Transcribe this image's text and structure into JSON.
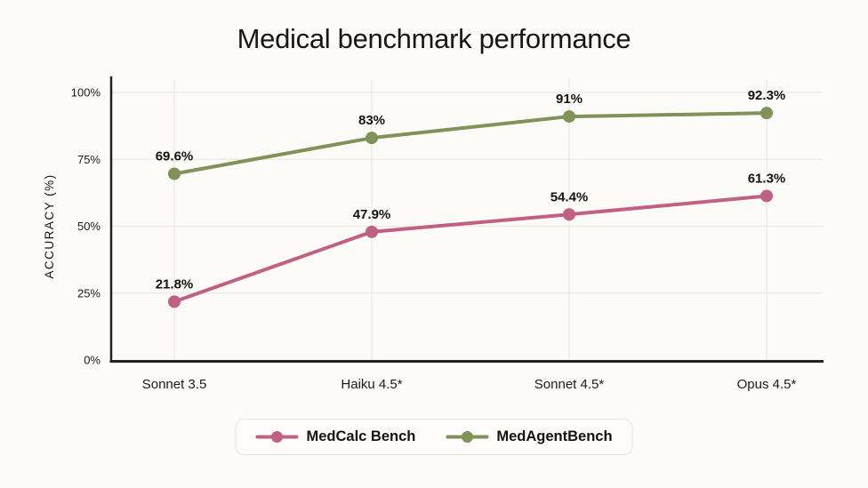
{
  "theme": {
    "background": "#FCFBF8",
    "text_color": "#171613",
    "grid_line": "#ECE9E3",
    "axis_line": "#23211E",
    "legend_border": "#E7E4DC",
    "legend_background": "#FDFCFA"
  },
  "chart_data": {
    "type": "line",
    "title": "Medical benchmark performance",
    "categories": [
      "Sonnet 3.5",
      "Haiku 4.5*",
      "Sonnet 4.5*",
      "Opus 4.5*"
    ],
    "series": [
      {
        "name": "MedCalc Bench",
        "color": "#C25F84",
        "values": [
          21.8,
          47.9,
          54.4,
          61.3
        ],
        "point_labels": [
          "21.8%",
          "47.9%",
          "54.4%",
          "61.3%"
        ]
      },
      {
        "name": "MedAgentBench",
        "color": "#7F9257",
        "values": [
          69.6,
          83,
          91,
          92.3
        ],
        "point_labels": [
          "69.6%",
          "83%",
          "91%",
          "92.3%"
        ]
      }
    ],
    "xlabel": "",
    "ylabel": "ACCURACY (%)",
    "ylim": [
      0,
      100
    ],
    "ytick_values": [
      0,
      25,
      50,
      75,
      100
    ],
    "ytick_labels": [
      "0%",
      "25%",
      "50%",
      "75%",
      "100%"
    ],
    "grid": true,
    "legend_position": "bottom"
  }
}
